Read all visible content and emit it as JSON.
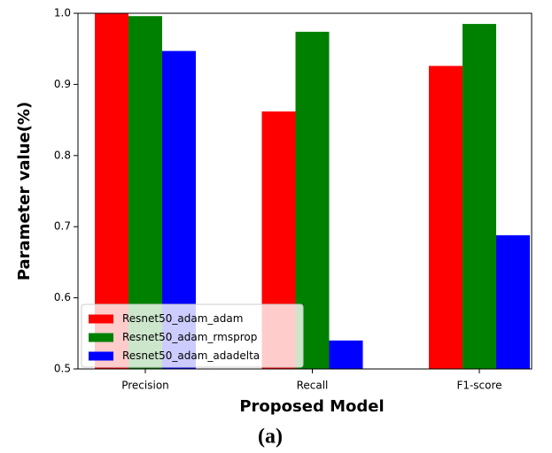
{
  "chart_data": {
    "type": "bar",
    "x_label": "Proposed Model",
    "y_label": "Parameter value(%)",
    "caption": "(a)",
    "categories": [
      "Precision",
      "Recall",
      "F1-score"
    ],
    "series": [
      {
        "name": "Resnet50_adam_adam",
        "color": "#ff0000",
        "values": [
          1.0,
          0.862,
          0.926
        ]
      },
      {
        "name": "Resnet50_adam_rmsprop",
        "color": "#008000",
        "values": [
          0.996,
          0.974,
          0.985
        ]
      },
      {
        "name": "Resnet50_adam_adadelta",
        "color": "#0000ff",
        "values": [
          0.947,
          0.54,
          0.688
        ]
      }
    ],
    "ylim": [
      0.5,
      1.0
    ],
    "yticks": [
      0.5,
      0.6,
      0.7,
      0.8,
      0.9,
      {
        "value": 1.0,
        "label": "1.0"
      }
    ],
    "grid": false,
    "legend": "lower left"
  }
}
